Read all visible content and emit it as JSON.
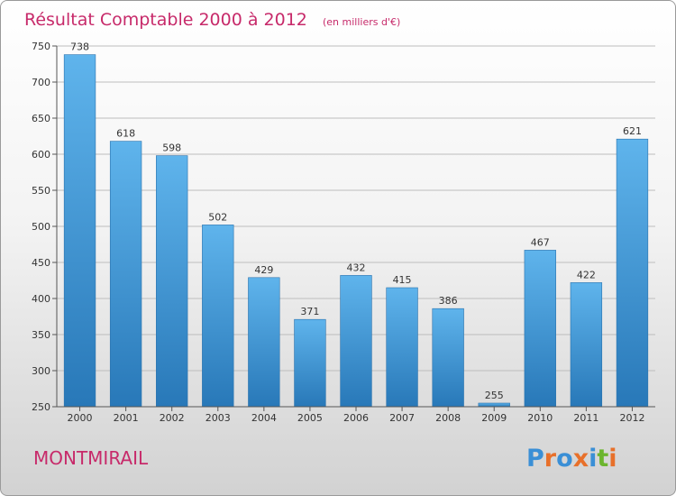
{
  "chart_data": {
    "type": "bar",
    "title": "Résultat Comptable 2000 à 2012",
    "subtitle": "(en milliers d'€)",
    "categories": [
      "2000",
      "2001",
      "2002",
      "2003",
      "2004",
      "2005",
      "2006",
      "2007",
      "2008",
      "2009",
      "2010",
      "2011",
      "2012"
    ],
    "values": [
      738,
      618,
      598,
      502,
      429,
      371,
      432,
      415,
      386,
      255,
      467,
      422,
      621
    ],
    "yticks": [
      250,
      300,
      350,
      400,
      450,
      500,
      550,
      600,
      650,
      700,
      750
    ],
    "ylim": [
      250,
      750
    ],
    "grid": true,
    "bar_color": "#3f98d8"
  },
  "footer": {
    "commune": "MONTMIRAIL",
    "logo": "Proxiti",
    "logo_colors": [
      "#3a8fd6",
      "#e8702a",
      "#3a8fd6",
      "#e8702a",
      "#3a8fd6",
      "#6bb52e",
      "#e8702a"
    ]
  }
}
